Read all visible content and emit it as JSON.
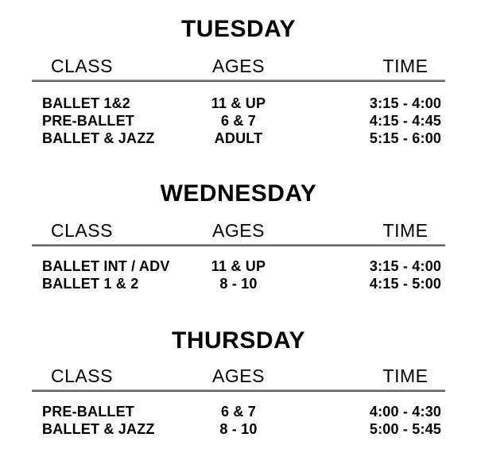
{
  "page": {
    "background": "#ffffff",
    "text_color": "#000000",
    "rule_color": "#7a7a7a"
  },
  "columns": {
    "class": "CLASS",
    "ages": "AGES",
    "time": "TIME"
  },
  "sections": [
    {
      "day": "TUESDAY",
      "rows": [
        {
          "class": "BALLET 1&2",
          "ages": "11 & UP",
          "time": "3:15 - 4:00"
        },
        {
          "class": "PRE-BALLET",
          "ages": "6 & 7",
          "time": "4:15 - 4:45"
        },
        {
          "class": "BALLET & JAZZ",
          "ages": "ADULT",
          "time": "5:15 - 6:00"
        }
      ]
    },
    {
      "day": "WEDNESDAY",
      "rows": [
        {
          "class": "BALLET INT / ADV",
          "ages": "11 & UP",
          "time": "3:15 - 4:00"
        },
        {
          "class": "BALLET 1 & 2",
          "ages": "8 - 10",
          "time": "4:15 - 5:00"
        }
      ]
    },
    {
      "day": "THURSDAY",
      "rows": [
        {
          "class": "PRE-BALLET",
          "ages": "6 & 7",
          "time": "4:00 - 4:30"
        },
        {
          "class": "BALLET & JAZZ",
          "ages": "8 - 10",
          "time": "5:00 - 5:45"
        }
      ]
    }
  ]
}
